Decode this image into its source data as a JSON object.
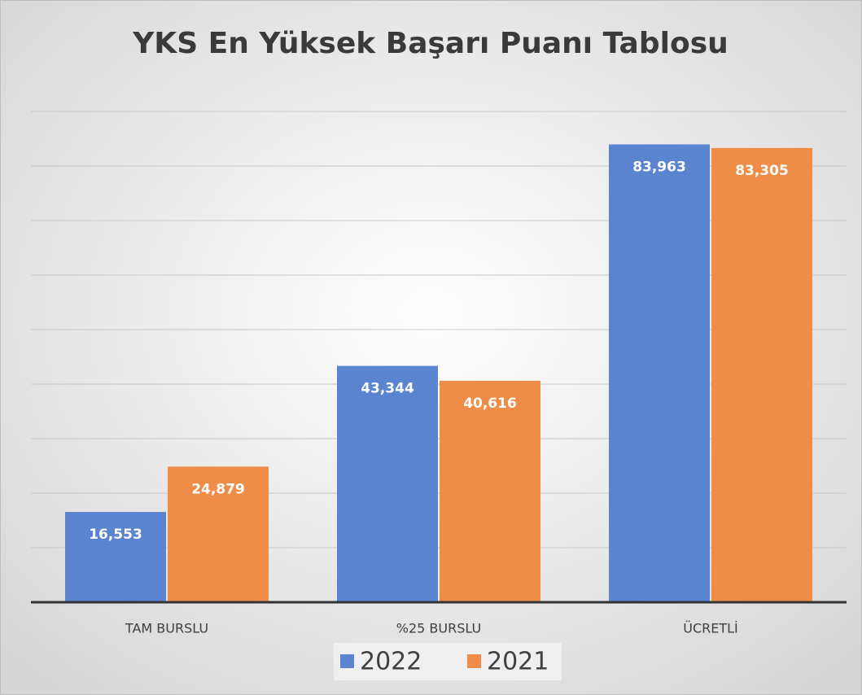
{
  "chart_data": {
    "type": "bar",
    "title": "YKS En Yüksek Başarı Puanı Tablosu",
    "categories": [
      "TAM BURSLU",
      "%25 BURSLU",
      "ÜCRETLİ"
    ],
    "series": [
      {
        "name": "2022",
        "color": "#5a83d0",
        "values": [
          16553,
          43344,
          83963
        ],
        "value_labels": [
          "16,553",
          "43,344",
          "83,963"
        ]
      },
      {
        "name": "2021",
        "color": "#ef8d48",
        "values": [
          24879,
          40616,
          83305
        ],
        "value_labels": [
          "24,879",
          "40,616",
          "83,305"
        ]
      }
    ],
    "ylim": [
      0,
      90000
    ],
    "yticks": [
      0,
      10000,
      20000,
      30000,
      40000,
      50000,
      60000,
      70000,
      80000,
      90000
    ],
    "grid": true,
    "legend": "bottom"
  }
}
